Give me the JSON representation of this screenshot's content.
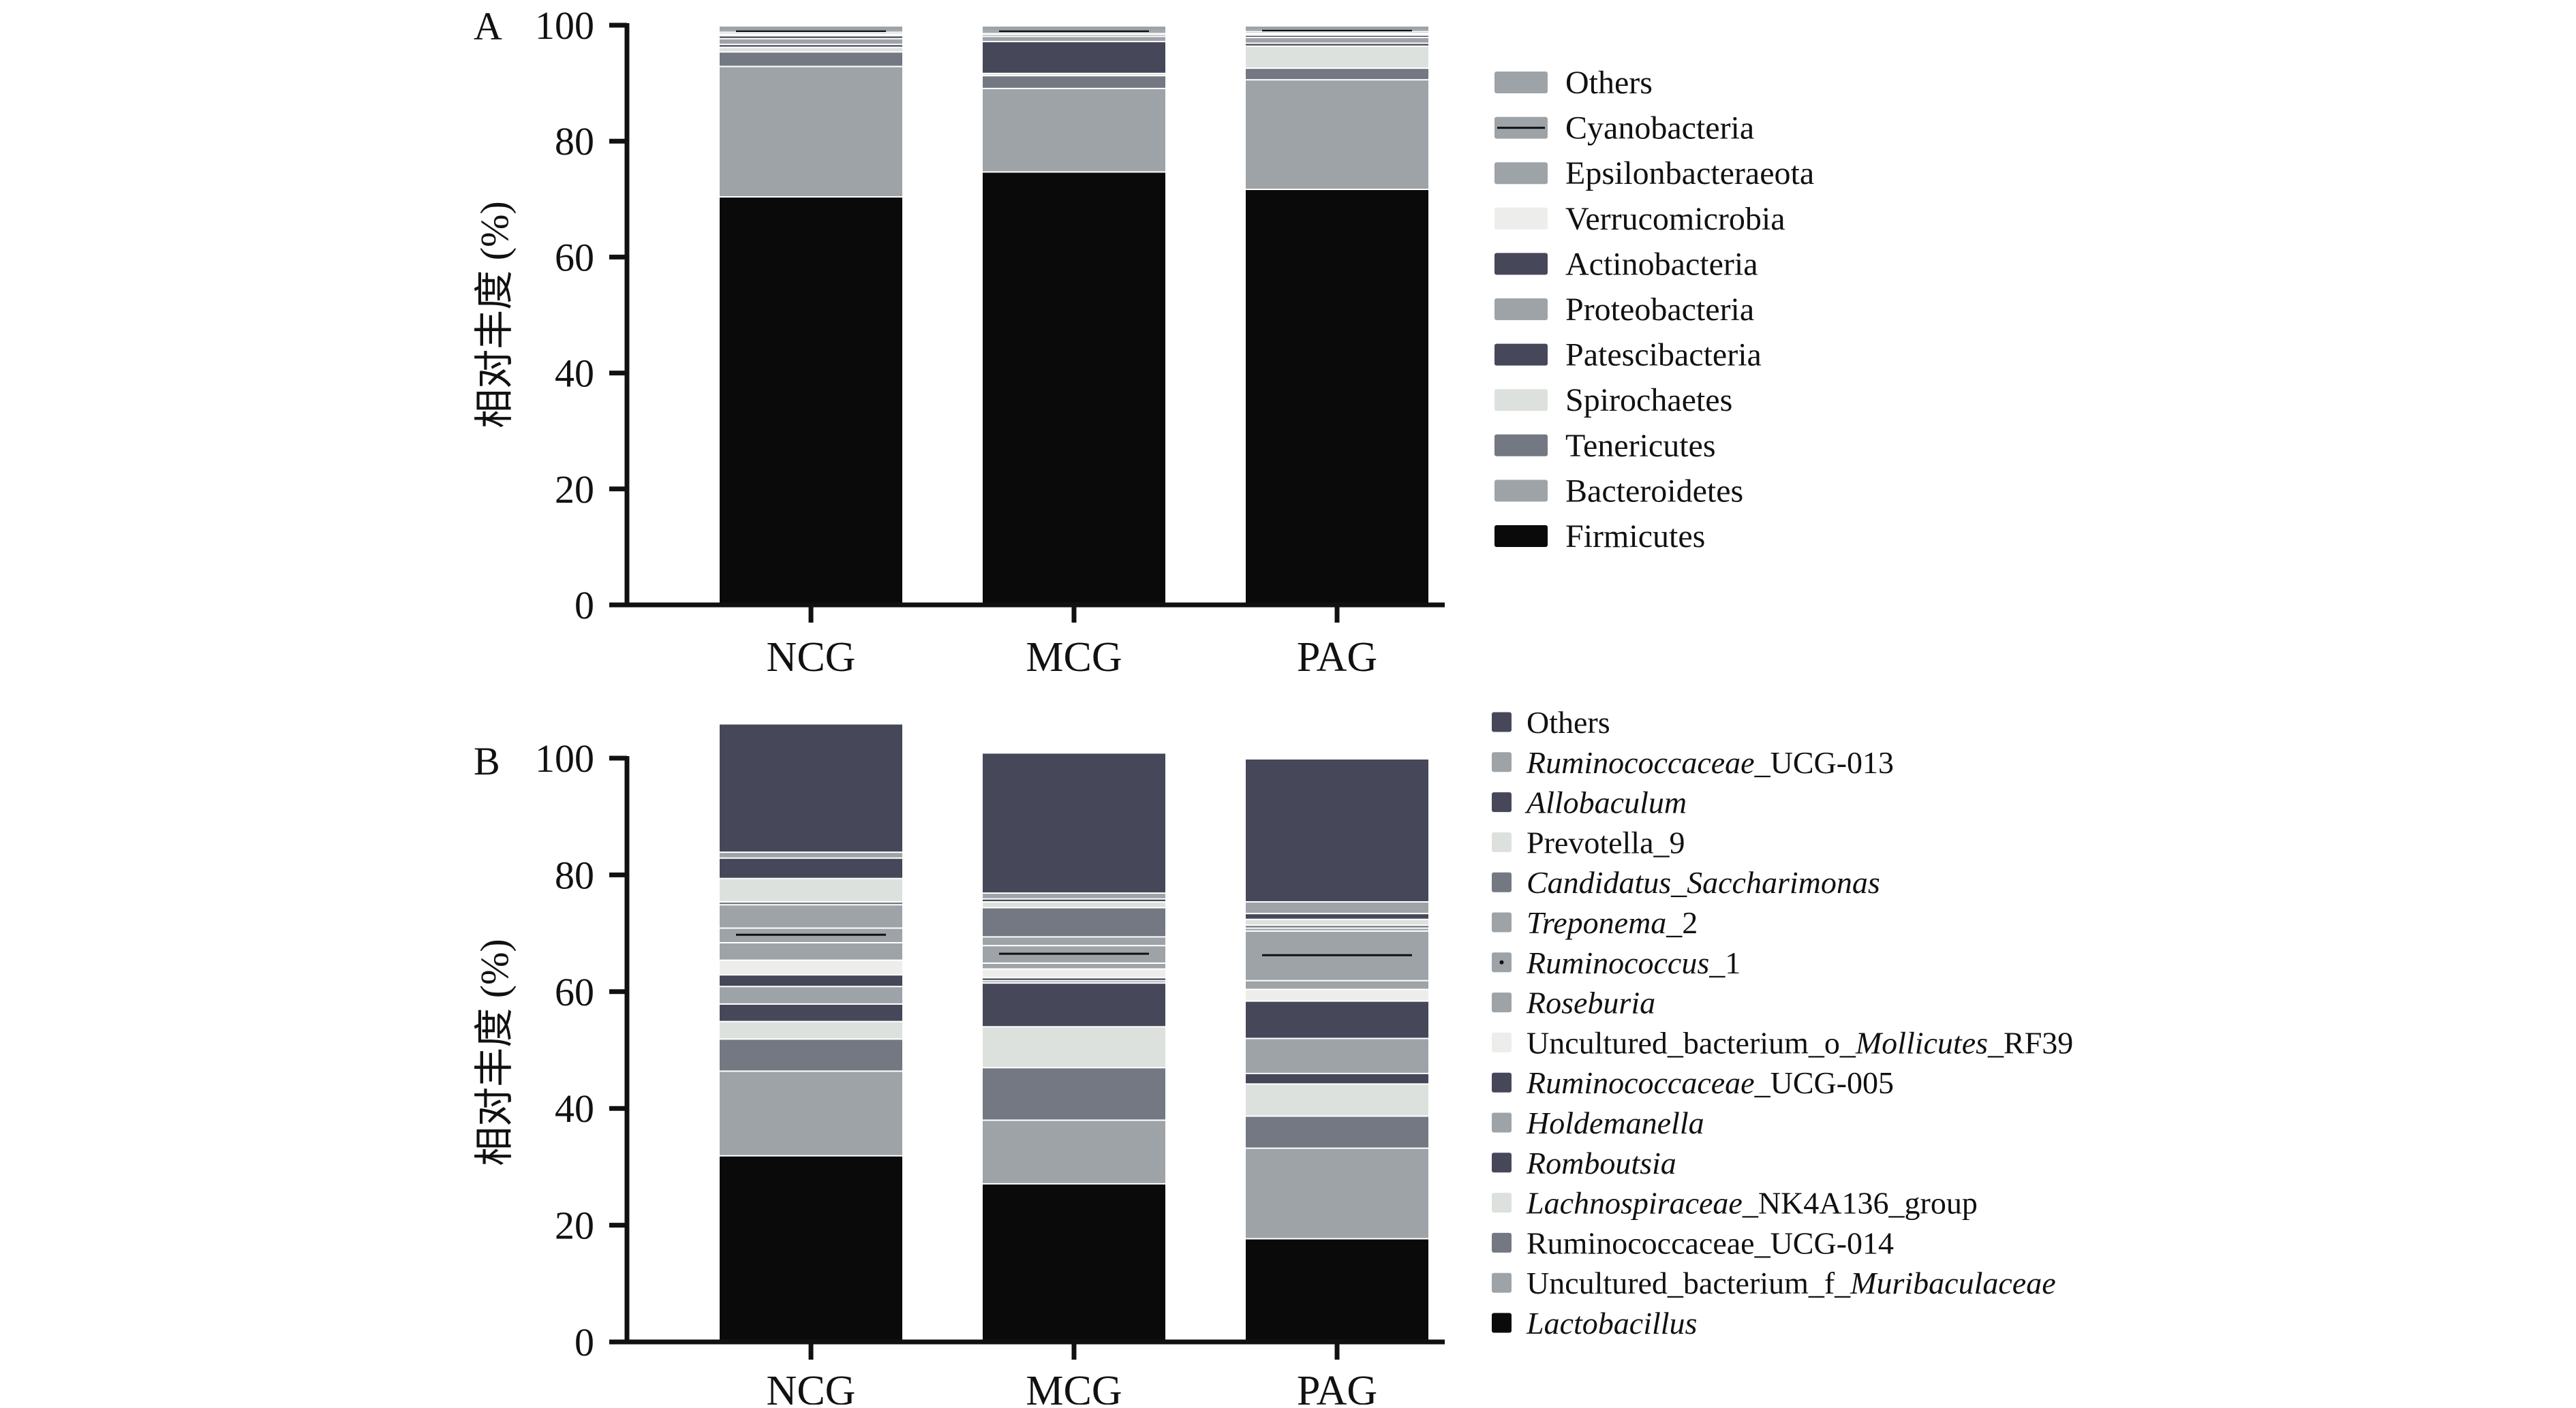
{
  "chart_data": [
    {
      "panel": "A",
      "type": "bar",
      "stacked": true,
      "ylabel": "相对丰度 (%)",
      "ylim": [
        0,
        100
      ],
      "yticks": [
        0,
        20,
        40,
        60,
        80,
        100
      ],
      "categories": [
        "NCG",
        "MCG",
        "PAG"
      ],
      "legend_position": "right",
      "series": [
        {
          "name": "Firmicutes",
          "color": "#0a0a0a",
          "values": [
            70.5,
            74.8,
            71.8
          ]
        },
        {
          "name": "Bacteroidetes",
          "color": "#9ea3a8",
          "values": [
            22.5,
            14.4,
            18.9
          ]
        },
        {
          "name": "Tenericutes",
          "color": "#737882",
          "values": [
            2.5,
            2.2,
            2.0
          ]
        },
        {
          "name": "Spirochaetes",
          "color": "#dde1dd",
          "values": [
            0.8,
            0.4,
            3.8
          ]
        },
        {
          "name": "Patescibacteria",
          "color": "#464859",
          "values": [
            0.5,
            5.5,
            0.5
          ]
        },
        {
          "name": "Proteobacteria",
          "color": "#9ea3a8",
          "values": [
            1.0,
            0.9,
            1.0
          ]
        },
        {
          "name": "Actinobacteria",
          "color": "#464859",
          "values": [
            0.5,
            0.3,
            0.4
          ]
        },
        {
          "name": "Verrucomicrobia",
          "color": "#ededeb",
          "values": [
            0.3,
            0.2,
            0.3
          ]
        },
        {
          "name": "Epsilonbacteraeota",
          "color": "#9ea3a8",
          "values": [
            0.3,
            0.2,
            0.3
          ]
        },
        {
          "name": "Cyanobacteria",
          "color": "#9ea3a8",
          "marker": "line",
          "values": [
            0.2,
            0.2,
            0.2
          ]
        },
        {
          "name": "Others",
          "color": "#9ea3a8",
          "values": [
            0.9,
            0.9,
            0.8
          ]
        }
      ]
    },
    {
      "panel": "B",
      "type": "bar",
      "stacked": true,
      "ylabel": "相对丰度 (%)",
      "ylim": [
        0,
        100
      ],
      "yticks": [
        0,
        20,
        40,
        60,
        80,
        100
      ],
      "categories": [
        "NCG",
        "MCG",
        "PAG"
      ],
      "legend_position": "right",
      "series": [
        {
          "name": "Lactobacillus",
          "italic": true,
          "color": "#0a0a0a",
          "values": [
            32.0,
            27.2,
            17.8
          ]
        },
        {
          "name": "Uncultured_bacterium_f_Muribaculaceae",
          "italic_part": "Muribaculaceae",
          "color": "#9ea3a8",
          "values": [
            14.5,
            10.9,
            15.5
          ]
        },
        {
          "name": "Ruminococcaceae_UCG-014",
          "color": "#737882",
          "values": [
            5.5,
            9.0,
            5.5
          ]
        },
        {
          "name": "Lachnospiraceae_NK4A136_group",
          "italic_part": "Lachnospiraceae",
          "color": "#dde1dd",
          "values": [
            3.0,
            7.0,
            5.5
          ]
        },
        {
          "name": "Romboutsia",
          "italic": true,
          "color": "#464859",
          "values": [
            3.0,
            7.5,
            1.8
          ]
        },
        {
          "name": "Holdemanella",
          "italic": true,
          "color": "#9ea3a8",
          "values": [
            3.0,
            0.4,
            6.0
          ]
        },
        {
          "name": "Ruminococcaceae_UCG-005",
          "italic_part": "Ruminococcaceae",
          "color": "#464859",
          "values": [
            2.0,
            0.5,
            6.4
          ]
        },
        {
          "name": "Uncultured_bacterium_o_Mollicutes_RF39",
          "italic_part": "Mollicutes",
          "color": "#ededeb",
          "values": [
            2.5,
            1.5,
            2.0
          ]
        },
        {
          "name": "Roseburia",
          "italic": true,
          "color": "#9ea3a8",
          "values": [
            3.0,
            1.0,
            1.5
          ]
        },
        {
          "name": "Ruminococcus_1",
          "italic_part": "Ruminococcus",
          "color": "#9ea3a8",
          "marker": "dot",
          "values": [
            2.5,
            3.0,
            8.5
          ]
        },
        {
          "name": "Treponema_2",
          "italic_part": "Treponema",
          "color": "#9ea3a8",
          "values": [
            4.0,
            1.5,
            0.5
          ]
        },
        {
          "name": "Candidatus_Saccharimonas",
          "italic": true,
          "color": "#737882",
          "values": [
            0.5,
            5.0,
            0.5
          ]
        },
        {
          "name": "Prevotella_9",
          "color": "#dde1dd",
          "values": [
            4.0,
            1.0,
            1.0
          ]
        },
        {
          "name": "Allobaculum",
          "italic": true,
          "color": "#464859",
          "values": [
            3.5,
            0.5,
            1.0
          ]
        },
        {
          "name": "Ruminococcaceae_UCG-013",
          "italic_part": "Ruminococcaceae",
          "color": "#9ea3a8",
          "values": [
            1.0,
            1.0,
            2.0
          ]
        },
        {
          "name": "Others",
          "color": "#464859",
          "values": [
            22.0,
            24.0,
            24.5
          ]
        }
      ]
    }
  ]
}
